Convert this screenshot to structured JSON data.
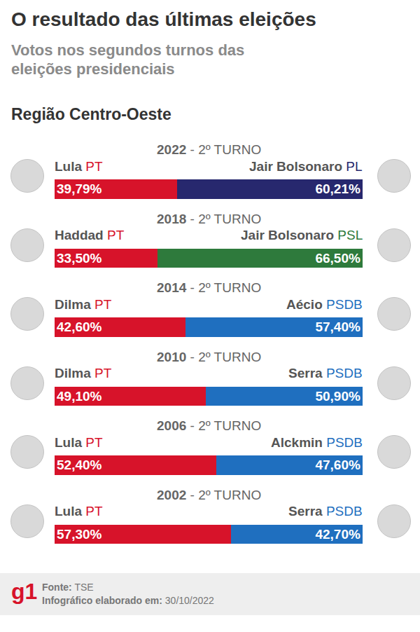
{
  "chart_data": {
    "type": "bar",
    "orientation": "horizontal",
    "stacked": true,
    "data_labels": true,
    "tick_labels": false,
    "grid": false,
    "title": "O resultado das últimas eleições",
    "subtitle": "Votos nos segundos turnos das eleições presidenciais",
    "annotations": [
      "Região Centro-Oeste"
    ],
    "footer": {
      "logo": "g1",
      "source": "Fonte: TSE",
      "date": "Infográfico elaborado em: 30/10/2022"
    },
    "categories": [
      "2022 - 2º TURNO",
      "2018 - 2º TURNO",
      "2014 - 2º TURNO",
      "2010 - 2º TURNO",
      "2006 - 2º TURNO",
      "2002 - 2º TURNO"
    ],
    "xlim": [
      0,
      100
    ],
    "series": [
      {
        "candidates": [
          "Lula",
          "Haddad",
          "Dilma",
          "Dilma",
          "Lula",
          "Lula"
        ],
        "parties": [
          "PT",
          "PT",
          "PT",
          "PT",
          "PT",
          "PT"
        ],
        "colors": [
          "#d7132a",
          "#d7132a",
          "#d7132a",
          "#d7132a",
          "#d7132a",
          "#d7132a"
        ],
        "values": [
          39.79,
          33.5,
          42.6,
          49.1,
          52.4,
          57.3
        ],
        "value_labels": [
          "39,79%",
          "33,50%",
          "42,60%",
          "49,10%",
          "52,40%",
          "57,30%"
        ]
      },
      {
        "candidates": [
          "Jair Bolsonaro",
          "Jair Bolsonaro",
          "Aécio",
          "Serra",
          "Alckmin",
          "Serra"
        ],
        "parties": [
          "PL",
          "PSL",
          "PSDB",
          "PSDB",
          "PSDB",
          "PSDB"
        ],
        "colors": [
          "#27286e",
          "#2e7a3c",
          "#1f6fbf",
          "#1f6fbf",
          "#1f6fbf",
          "#1f6fbf"
        ],
        "values": [
          60.21,
          66.5,
          57.4,
          50.9,
          47.6,
          42.7
        ],
        "value_labels": [
          "60,21%",
          "66,50%",
          "57,40%",
          "50,90%",
          "47,60%",
          "42,70%"
        ]
      }
    ]
  }
}
